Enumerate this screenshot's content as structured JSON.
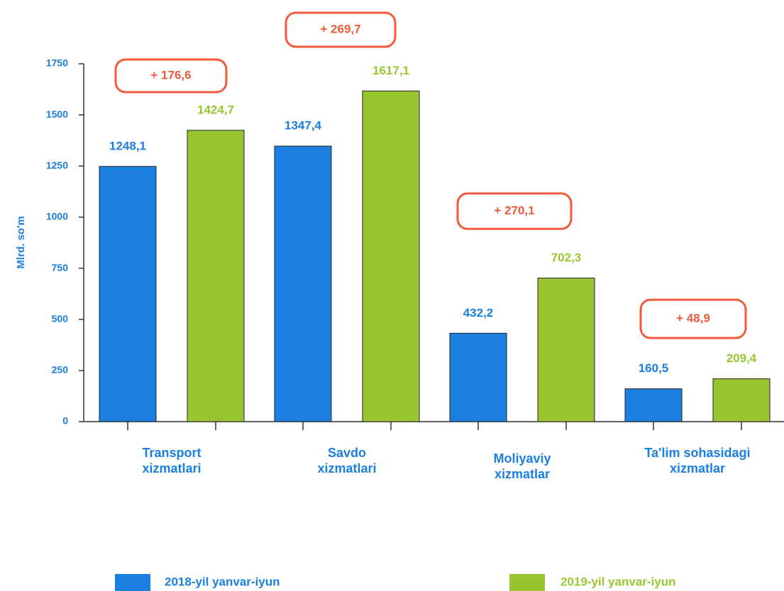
{
  "chart_data": {
    "type": "bar",
    "y_label": "Mlrd. so'm",
    "categories": [
      "Transport\nxizmatlari",
      "Savdo\nxizmatlari",
      "Moliyaviy\nxizmatlar",
      "Ta'lim sohasidagi\nxizmatlar"
    ],
    "series": [
      {
        "name": "2018-yil yanvar-iyun",
        "color": "#1a7fe0",
        "values": [
          1248.1,
          1347.4,
          432.2,
          160.5
        ],
        "value_labels": [
          "1248,1",
          "1347,4",
          "432,2",
          "160,5"
        ]
      },
      {
        "name": "2019-yil yanvar-iyun",
        "color": "#99c531",
        "values": [
          1424.7,
          1617.1,
          702.3,
          209.4
        ],
        "value_labels": [
          "1424,7",
          "1617,1",
          "702,3",
          "209,4"
        ]
      }
    ],
    "annotations": [
      "+ 176,6",
      "+ 269,7",
      "+ 270,1",
      "+ 48,9"
    ],
    "annotation_color": "#f05a3a",
    "ylim": [
      0,
      1750
    ],
    "yticks": [
      0,
      250,
      500,
      750,
      1000,
      1250,
      1500,
      1750
    ],
    "grid": false,
    "legend": "bottom"
  }
}
